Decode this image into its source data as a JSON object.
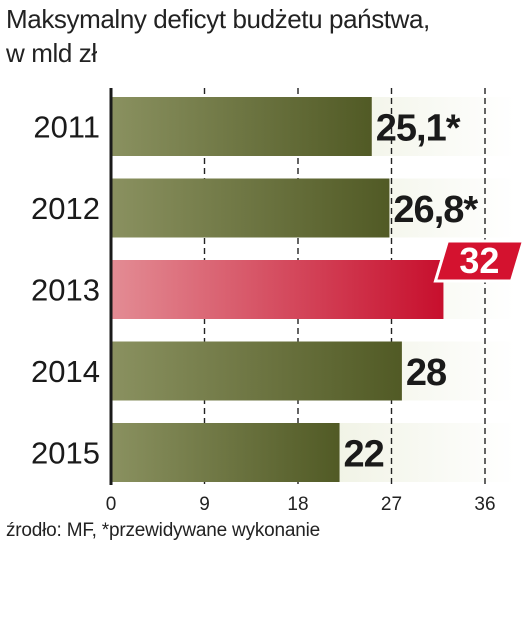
{
  "title_line1": "Maksymalny deficyt budżetu państwa,",
  "title_line2": "w mld zł",
  "source": "źrodło: MF, *przewidywane wykonanie",
  "colors": {
    "bar_dark": "#545e2a",
    "bar_light": "#dfe4c6",
    "highlight_dark": "#c8102e",
    "highlight_light": "#e59aa2",
    "highlight_label_bg": "#d4122f"
  },
  "chart_data": {
    "type": "bar",
    "orientation": "horizontal",
    "categories": [
      "2011",
      "2012",
      "2013",
      "2014",
      "2015"
    ],
    "values": [
      25.1,
      26.8,
      32,
      28,
      22
    ],
    "value_labels": [
      "25,1*",
      "26,8*",
      "32",
      "28",
      "22"
    ],
    "highlight_index": 2,
    "xlim": [
      0,
      36
    ],
    "xticks": [
      "0",
      "9",
      "18",
      "27",
      "36"
    ],
    "xtick_values": [
      0,
      9,
      18,
      27,
      36
    ],
    "grid": "dashed vertical"
  }
}
